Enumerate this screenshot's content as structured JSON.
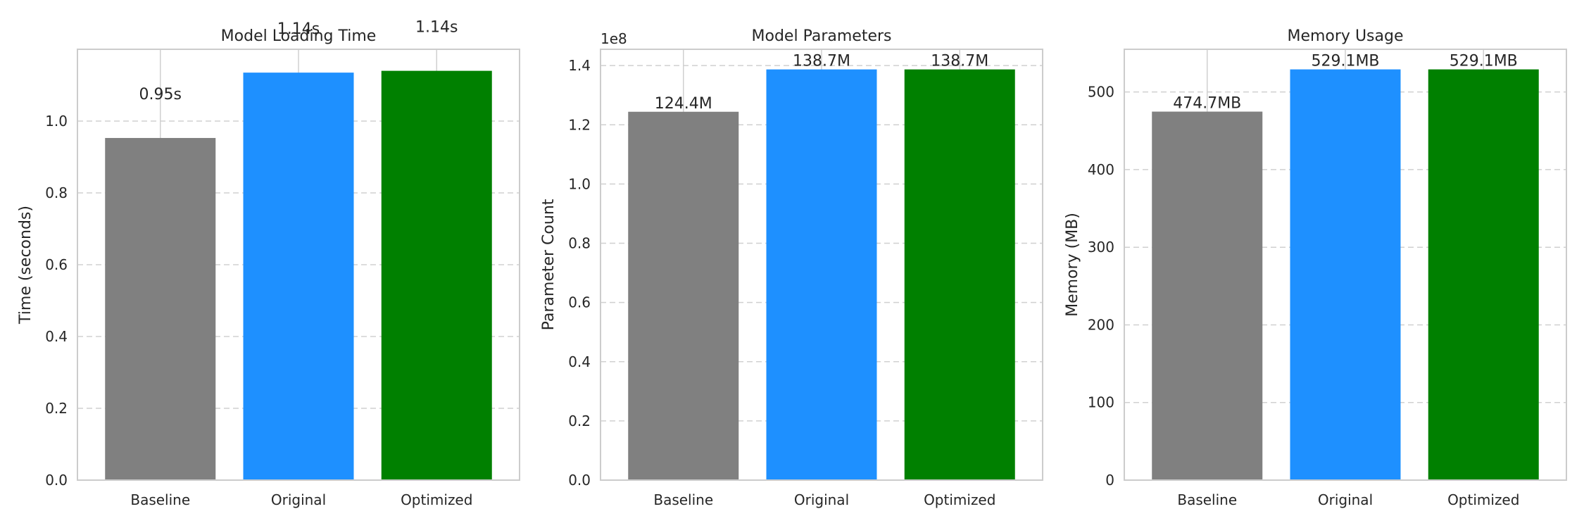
{
  "chart_data": [
    {
      "type": "bar",
      "title": "Model Loading Time",
      "xlabel": "",
      "ylabel": "Time (seconds)",
      "categories": [
        "Baseline",
        "Original",
        "Optimized"
      ],
      "values": [
        0.953,
        1.135,
        1.14
      ],
      "value_labels": [
        "0.95s",
        "1.14s",
        "1.14s"
      ],
      "colors": [
        "#808080",
        "#1e90ff",
        "#008000"
      ],
      "ylim": [
        0,
        1.2
      ],
      "yticks": [
        0,
        0.2,
        0.4,
        0.6,
        0.8,
        1.0
      ],
      "ytick_labels": [
        "0.0",
        "0.2",
        "0.4",
        "0.6",
        "0.8",
        "1.0"
      ],
      "offset_text": "",
      "grid": "y-dashed"
    },
    {
      "type": "bar",
      "title": "Model Parameters",
      "xlabel": "",
      "ylabel": "Parameter Count",
      "categories": [
        "Baseline",
        "Original",
        "Optimized"
      ],
      "values": [
        124400000,
        138700000,
        138700000
      ],
      "value_labels": [
        "124.4M",
        "138.7M",
        "138.7M"
      ],
      "colors": [
        "#808080",
        "#1e90ff",
        "#008000"
      ],
      "ylim": [
        0,
        145500000
      ],
      "yticks": [
        0,
        20000000,
        40000000,
        60000000,
        80000000,
        100000000,
        120000000,
        140000000
      ],
      "ytick_labels": [
        "0.0",
        "0.2",
        "0.4",
        "0.6",
        "0.8",
        "1.0",
        "1.2",
        "1.4"
      ],
      "offset_text": "1e8",
      "grid": "y-dashed"
    },
    {
      "type": "bar",
      "title": "Memory Usage",
      "xlabel": "",
      "ylabel": "Memory (MB)",
      "categories": [
        "Baseline",
        "Original",
        "Optimized"
      ],
      "values": [
        474.7,
        529.1,
        529.1
      ],
      "value_labels": [
        "474.7MB",
        "529.1MB",
        "529.1MB"
      ],
      "colors": [
        "#808080",
        "#1e90ff",
        "#008000"
      ],
      "ylim": [
        0,
        555
      ],
      "yticks": [
        0,
        100,
        200,
        300,
        400,
        500
      ],
      "ytick_labels": [
        "0",
        "100",
        "200",
        "300",
        "400",
        "500"
      ],
      "offset_text": "",
      "grid": "y-dashed"
    }
  ]
}
